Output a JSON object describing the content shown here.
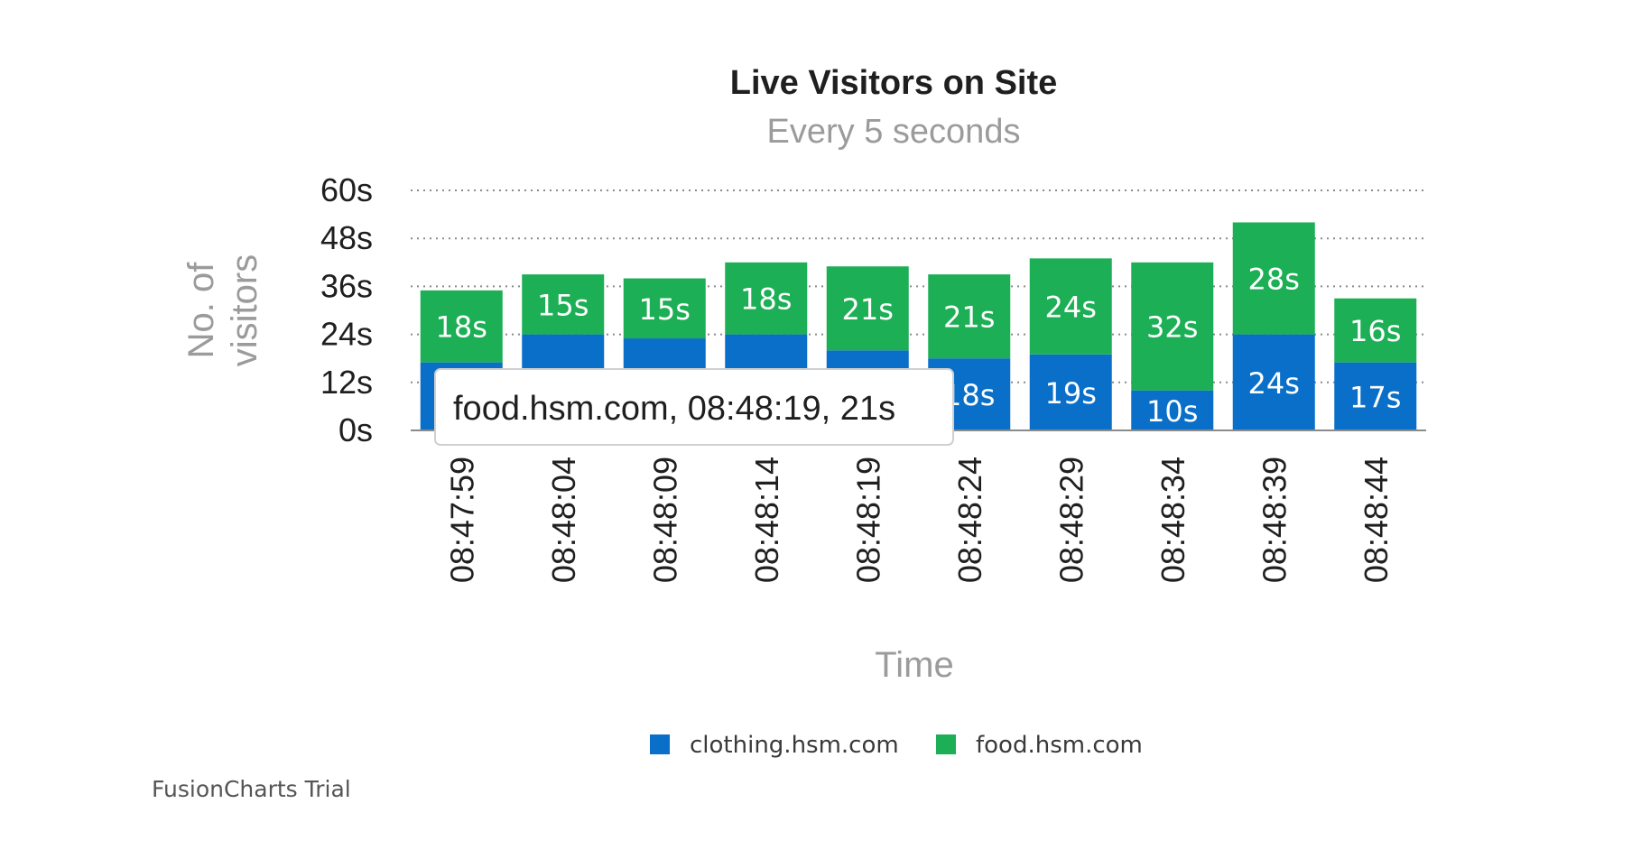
{
  "chart_data": {
    "type": "bar",
    "stacked": true,
    "title": "Live Visitors on Site",
    "subtitle": "Every 5 seconds",
    "xlabel": "Time",
    "ylabel": "No. of visitors",
    "ylabel_lines": [
      "No. of",
      "visitors"
    ],
    "ylim": [
      0,
      60
    ],
    "y_ticks": [
      "0s",
      "12s",
      "24s",
      "36s",
      "48s",
      "60s"
    ],
    "y_tick_values": [
      0,
      12,
      24,
      36,
      48,
      60
    ],
    "value_suffix": "s",
    "grid": true,
    "legend_position": "bottom",
    "categories": [
      "08:47:59",
      "08:48:04",
      "08:48:09",
      "08:48:14",
      "08:48:19",
      "08:48:24",
      "08:48:29",
      "08:48:34",
      "08:48:39",
      "08:48:44"
    ],
    "series": [
      {
        "name": "clothing.hsm.com",
        "color": "#0a6fc9",
        "values": [
          17,
          24,
          23,
          24,
          20,
          18,
          19,
          10,
          24,
          17
        ]
      },
      {
        "name": "food.hsm.com",
        "color": "#1daf55",
        "values": [
          18,
          15,
          15,
          18,
          21,
          21,
          24,
          32,
          28,
          16
        ]
      }
    ]
  },
  "tooltip": {
    "text": "food.hsm.com, 08:48:19, 21s"
  },
  "watermark": "FusionCharts Trial"
}
